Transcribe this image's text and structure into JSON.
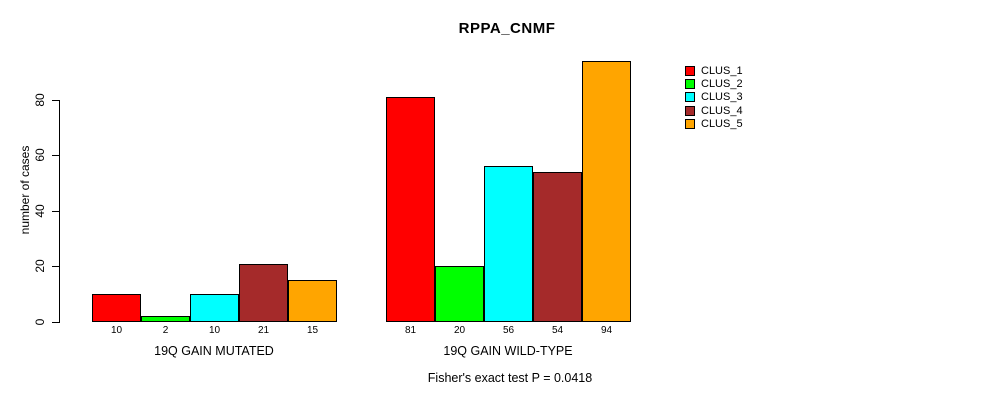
{
  "chart_data": {
    "type": "bar",
    "title": "RPPA_CNMF",
    "ylabel": "number of cases",
    "xlabel": "",
    "ylim": [
      0,
      94
    ],
    "yticks": [
      0,
      20,
      40,
      60,
      80
    ],
    "grid": false,
    "legend_position": "right-outside-top",
    "categories": [
      "19Q GAIN MUTATED",
      "19Q GAIN WILD-TYPE"
    ],
    "series": [
      {
        "name": "CLUS_1",
        "color": "#FF0000",
        "values": [
          10,
          81
        ]
      },
      {
        "name": "CLUS_2",
        "color": "#00FF00",
        "values": [
          2,
          20
        ]
      },
      {
        "name": "CLUS_3",
        "color": "#00FFFF",
        "values": [
          10,
          56
        ]
      },
      {
        "name": "CLUS_4",
        "color": "#A52A2A",
        "values": [
          21,
          54
        ]
      },
      {
        "name": "CLUS_5",
        "color": "#FFA500",
        "values": [
          15,
          94
        ]
      }
    ],
    "bar_value_labels": {
      "19Q GAIN MUTATED": [
        10,
        2,
        10,
        21,
        15
      ],
      "19Q GAIN WILD-TYPE": [
        81,
        20,
        56,
        54,
        94
      ]
    },
    "annotation": "Fisher's exact test P = 0.0418"
  }
}
